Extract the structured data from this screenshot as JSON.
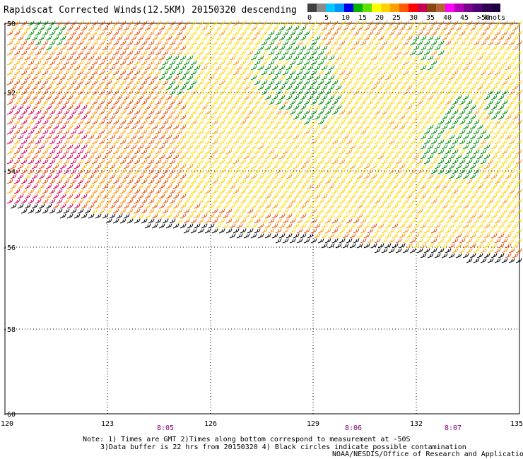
{
  "title": "Rapidscat Corrected Winds(12.5KM) 20150320 descending",
  "legend": {
    "colors": [
      "#404040",
      "#8a8a8a",
      "#00c8ff",
      "#0096ff",
      "#0000e6",
      "#00b400",
      "#60e000",
      "#ffff00",
      "#ffd200",
      "#ffa000",
      "#ff5a00",
      "#ff0000",
      "#c80050",
      "#8b4513",
      "#b46432",
      "#ff00ff",
      "#b400b4",
      "#78008c",
      "#500078",
      "#320050",
      "#200040"
    ],
    "labels": [
      "0",
      "5",
      "10",
      "15",
      "20",
      "25",
      "30",
      "35",
      "40",
      "45",
      ">50"
    ],
    "unit": "knots"
  },
  "map": {
    "lon_labels": [
      "120",
      "123",
      "126",
      "129",
      "132",
      "135"
    ],
    "lat_labels": [
      "-50",
      "-52",
      "-54",
      "-56",
      "-58",
      "-60"
    ],
    "time_labels": [
      "8:05",
      "8:06",
      "8:07"
    ]
  },
  "notes": {
    "line1": "Note: 1) Times are GMT 2)Times along bottom correspond to measurement at -50S",
    "line2": "3)Data buffer is 22 hrs from 20150320 4) Black circles indicate possible contamination"
  },
  "credit": "NOAA/NESDIS/Office of Research and Applications"
}
